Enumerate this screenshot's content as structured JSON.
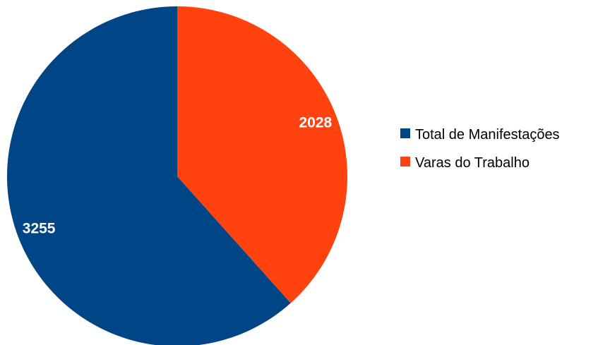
{
  "chart_data": {
    "type": "pie",
    "categories": [
      "Total de Manifestações",
      "Varas do Trabalho"
    ],
    "values": [
      3255,
      2028
    ],
    "colors": [
      "#004586",
      "#ff420e"
    ],
    "data_labels": [
      "3255",
      "2028"
    ],
    "legend_position": "right",
    "start_angle": "12 o'clock",
    "direction": "clockwise, second slice first"
  },
  "legend": {
    "items": [
      {
        "label": "Total de Manifestações",
        "color": "#004586"
      },
      {
        "label": "Varas do Trabalho",
        "color": "#ff420e"
      }
    ]
  }
}
